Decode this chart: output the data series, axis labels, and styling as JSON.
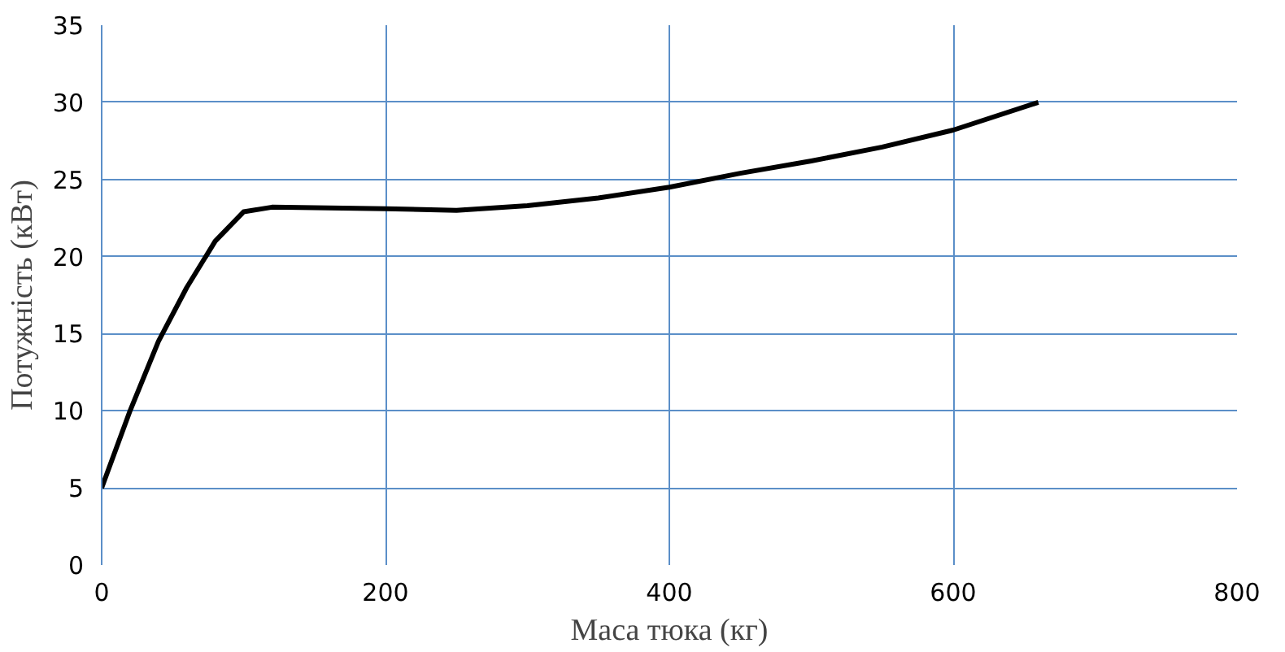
{
  "chart_data": {
    "type": "line",
    "xlabel": "Маса тюка (кг)",
    "ylabel": "Потужність (кВт)",
    "x": [
      0,
      20,
      40,
      60,
      80,
      100,
      120,
      200,
      250,
      300,
      350,
      400,
      450,
      500,
      550,
      600,
      660
    ],
    "series": [
      {
        "color": "#000000",
        "values": [
          5,
          10,
          14.5,
          18,
          21,
          22.9,
          23.2,
          23.1,
          23.0,
          23.3,
          23.8,
          24.5,
          25.4,
          26.2,
          27.1,
          28.2,
          30
        ]
      }
    ],
    "xlim": [
      0,
      800
    ],
    "xticks": [
      0,
      200,
      400,
      600,
      800
    ],
    "ylim": [
      0,
      35
    ],
    "yticks": [
      0,
      5,
      10,
      15,
      20,
      25,
      30,
      35
    ],
    "grid": true,
    "marker": "none",
    "line_style": "solid"
  }
}
